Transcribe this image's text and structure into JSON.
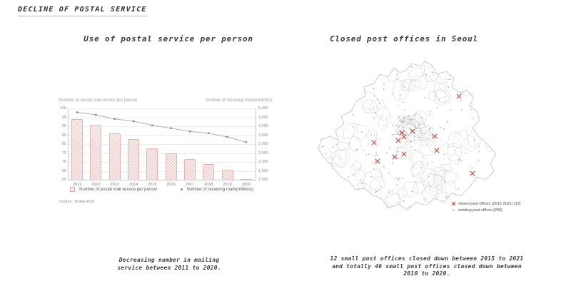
{
  "page": {
    "title": "DECLINE OF POSTAL SERVICE"
  },
  "left_panel": {
    "title": "Use of postal service per person",
    "source": "Source : Korea Post",
    "caption": [
      "Decreasing number in mailing",
      "service between 2011 to 2020."
    ]
  },
  "right_panel": {
    "title": "Closed post offices in Seoul",
    "caption": [
      "12 small post offices closed down between 2015 to 2021",
      "and totally 46 small post offices closed down between",
      "2010 to 2020."
    ]
  },
  "chart_data": {
    "type": "bar",
    "title": "Use of postal service per person",
    "categories": [
      "2011",
      "2012",
      "2013",
      "2014",
      "2015",
      "2016",
      "2017",
      "2018",
      "2019",
      "2020"
    ],
    "series": [
      {
        "name": "Number of postal mail service per person",
        "type": "bar",
        "axis": "left",
        "values": [
          94,
          91,
          86,
          83,
          77.5,
          75,
          71.5,
          69,
          65.5,
          60.5
        ]
      },
      {
        "name": "Number of receiving mails(millions)",
        "type": "line",
        "axis": "right",
        "values": [
          4780,
          4640,
          4410,
          4280,
          4050,
          3890,
          3710,
          3610,
          3400,
          3110
        ]
      }
    ],
    "left_axis": {
      "label": "Number of postal mail service per person",
      "min": 60,
      "max": 100,
      "step": 5
    },
    "right_axis": {
      "label": "Number of receiving mails(millions)",
      "min": 1000,
      "max": 5000,
      "step": 500
    },
    "grid": true,
    "legend_position": "bottom",
    "bar_color": "#f0d4d4",
    "line_color": "#b0b0b0"
  },
  "map_data": {
    "legend": {
      "closed_label": "closed post offices (2015-2021) [12]",
      "existing_label": "existing post offices [206]"
    },
    "marker_color": "#c0392b",
    "existing_count": 206,
    "closed_offices": [
      [
        203,
        53
      ],
      [
        138,
        102
      ],
      [
        123,
        104
      ],
      [
        126,
        110
      ],
      [
        118,
        115
      ],
      [
        169,
        109
      ],
      [
        84,
        118
      ],
      [
        172,
        129
      ],
      [
        126,
        134
      ],
      [
        113,
        138
      ],
      [
        89,
        144
      ],
      [
        222,
        161
      ]
    ]
  }
}
